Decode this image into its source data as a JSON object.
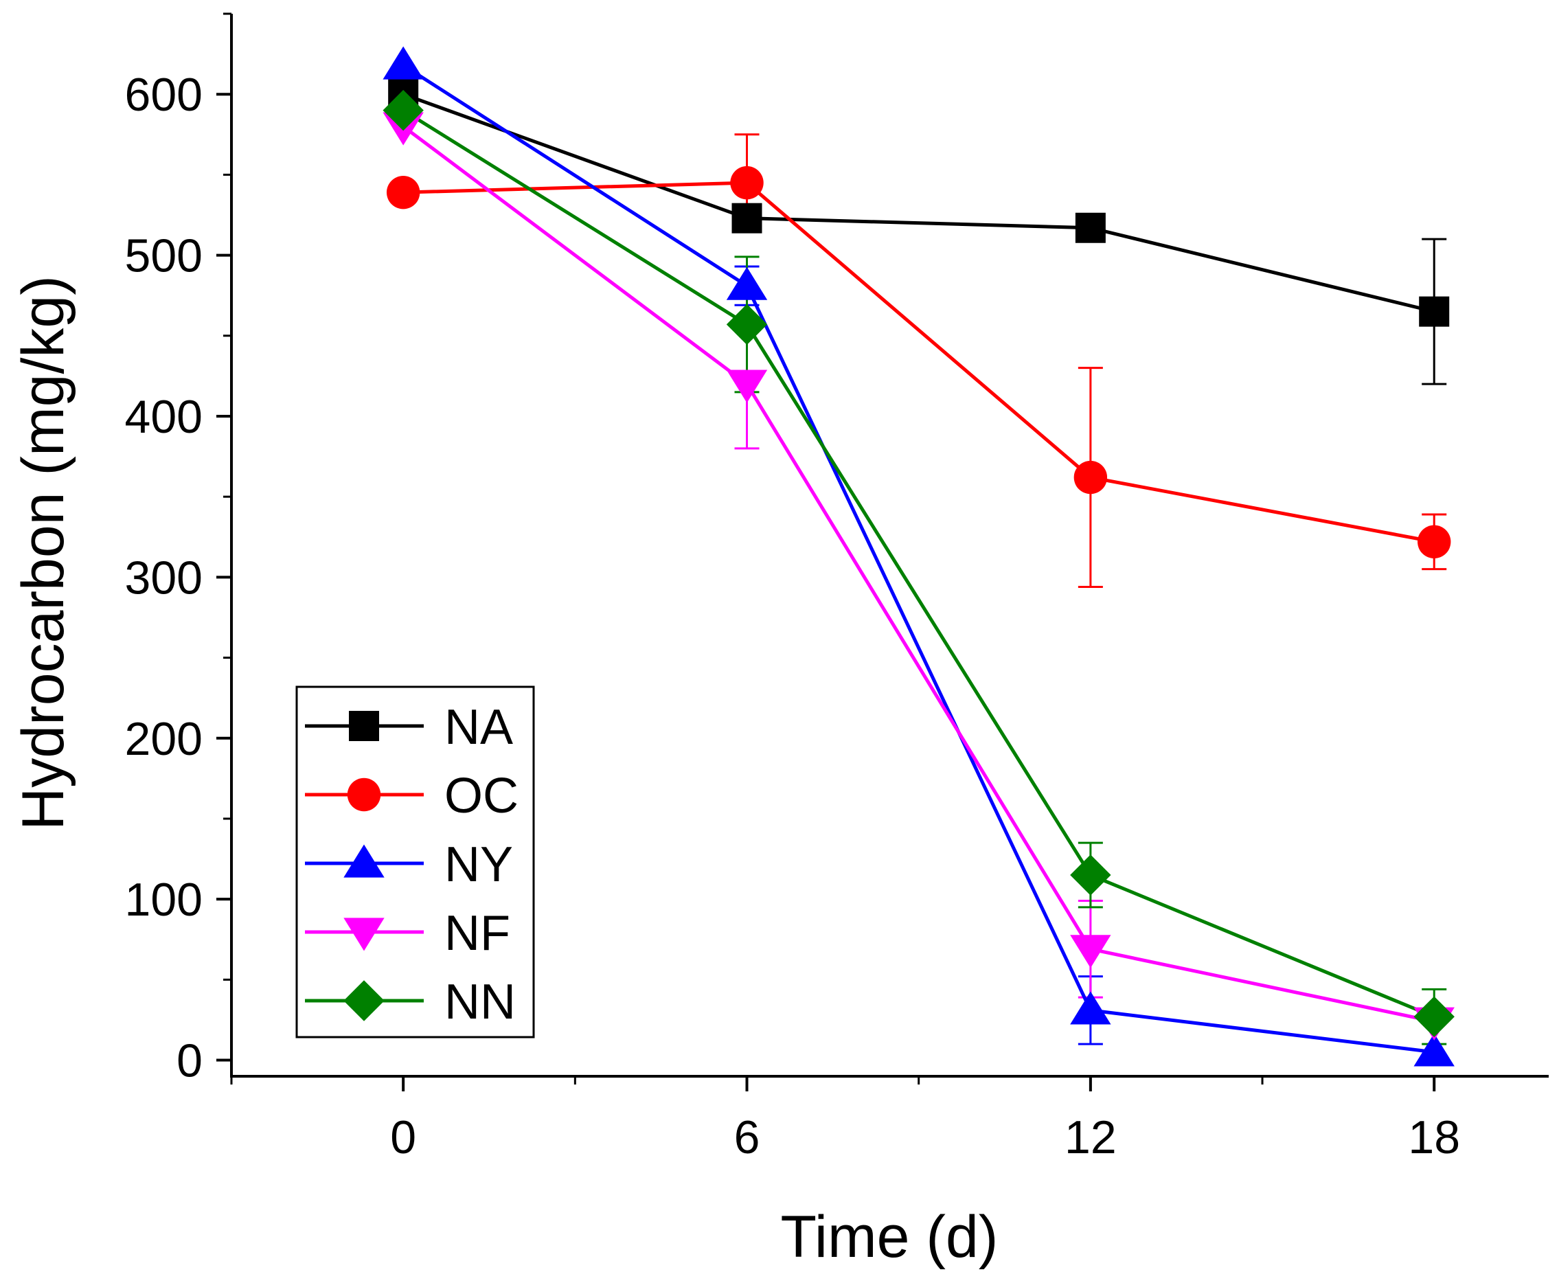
{
  "chart_data": {
    "type": "line",
    "title": "",
    "xlabel": "Time (d)",
    "ylabel": "Hydrocarbon (mg/kg)",
    "x": [
      0,
      6,
      12,
      18
    ],
    "xticks": [
      0,
      6,
      12,
      18
    ],
    "xlim": [
      -3,
      20
    ],
    "yticks": [
      0,
      100,
      200,
      300,
      400,
      500,
      600
    ],
    "ylim": [
      -10,
      650
    ],
    "grid": false,
    "legend": "bottom-left",
    "series": [
      {
        "name": "NA",
        "color": "#000000",
        "marker": "square",
        "values": [
          600,
          523,
          517,
          465
        ],
        "errors": [
          0,
          5,
          4,
          45
        ]
      },
      {
        "name": "OC",
        "color": "#ff0000",
        "marker": "circle",
        "values": [
          539,
          545,
          362,
          322
        ],
        "errors": [
          0,
          30,
          68,
          17
        ]
      },
      {
        "name": "NY",
        "color": "#0000ff",
        "marker": "triangle-up",
        "values": [
          618,
          481,
          31,
          5
        ],
        "errors": [
          0,
          12,
          21,
          0
        ]
      },
      {
        "name": "NF",
        "color": "#ff00ff",
        "marker": "triangle-down",
        "values": [
          580,
          420,
          69,
          24
        ],
        "errors": [
          0,
          40,
          30,
          0
        ]
      },
      {
        "name": "NN",
        "color": "#008000",
        "marker": "diamond",
        "values": [
          590,
          457,
          115,
          27
        ],
        "errors": [
          0,
          42,
          20,
          17
        ]
      }
    ]
  }
}
